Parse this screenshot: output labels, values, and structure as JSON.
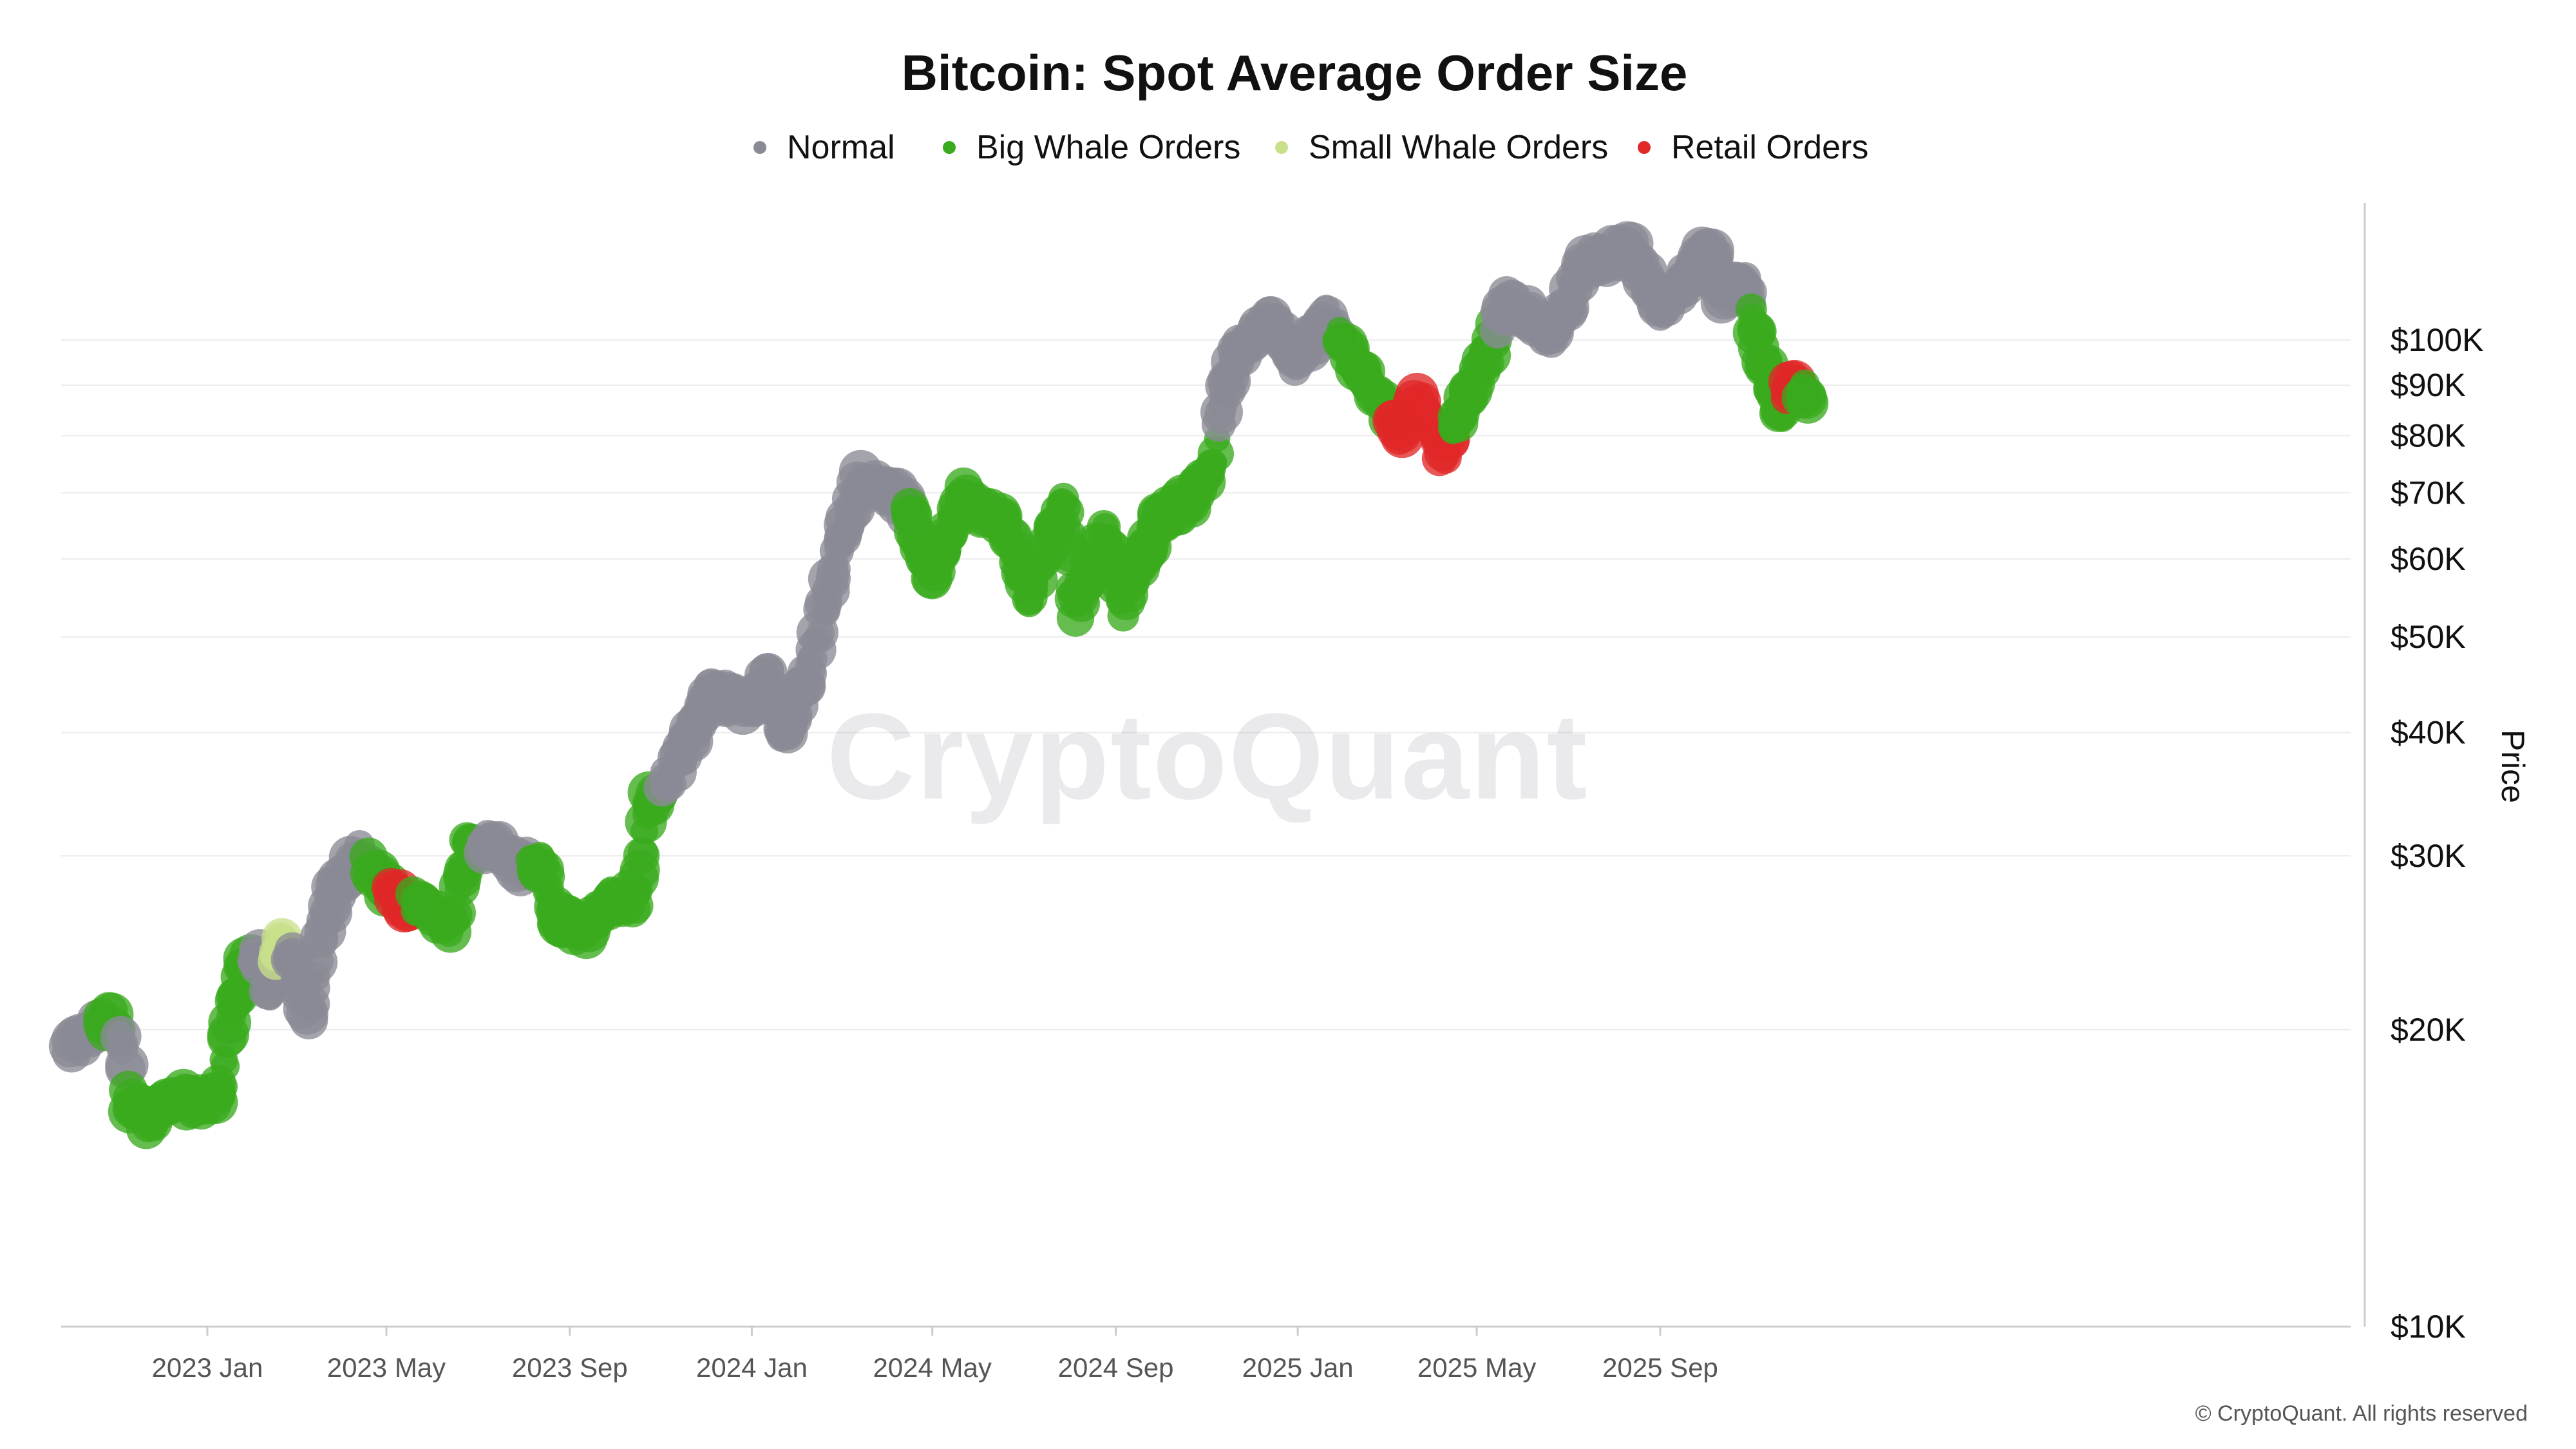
{
  "chart_data": {
    "type": "scatter",
    "title": "Bitcoin: Spot Average Order Size",
    "ylabel": "Price",
    "xlabel": "",
    "y_scale": "log",
    "ylim": [
      10000,
      150000
    ],
    "x_range": [
      "2022-10-01",
      "2025-12-10"
    ],
    "grid": true,
    "legend_position": "top-center",
    "watermark": "CryptoQuant",
    "copyright": "© CryptoQuant. All rights reserved",
    "y_ticks": [
      {
        "value": 100000,
        "label": "$100K"
      },
      {
        "value": 90000,
        "label": "$90K"
      },
      {
        "value": 80000,
        "label": "$80K"
      },
      {
        "value": 70000,
        "label": "$70K"
      },
      {
        "value": 60000,
        "label": "$60K"
      },
      {
        "value": 50000,
        "label": "$50K"
      },
      {
        "value": 40000,
        "label": "$40K"
      },
      {
        "value": 30000,
        "label": "$30K"
      },
      {
        "value": 20000,
        "label": "$20K"
      },
      {
        "value": 10000,
        "label": "$10K"
      }
    ],
    "x_ticks": [
      {
        "date": "2023-01-01",
        "label": "2023 Jan"
      },
      {
        "date": "2023-05-01",
        "label": "2023 May"
      },
      {
        "date": "2023-09-01",
        "label": "2023 Sep"
      },
      {
        "date": "2024-01-01",
        "label": "2024 Jan"
      },
      {
        "date": "2024-05-01",
        "label": "2024 May"
      },
      {
        "date": "2024-09-01",
        "label": "2024 Sep"
      },
      {
        "date": "2025-01-01",
        "label": "2025 Jan"
      },
      {
        "date": "2025-05-01",
        "label": "2025 May"
      },
      {
        "date": "2025-09-01",
        "label": "2025 Sep"
      }
    ],
    "series": [
      {
        "name": "Normal",
        "key": "normal",
        "color": "#8a8a96"
      },
      {
        "name": "Big Whale Orders",
        "key": "big",
        "color": "#3aaa1e"
      },
      {
        "name": "Small Whale Orders",
        "key": "small",
        "color": "#c8e08a"
      },
      {
        "name": "Retail Orders",
        "key": "retail",
        "color": "#e02828"
      }
    ],
    "price_path": [
      {
        "date": "2022-10-01",
        "price": 19200,
        "cat": "normal"
      },
      {
        "date": "2022-10-15",
        "price": 19800,
        "cat": "normal"
      },
      {
        "date": "2022-10-29",
        "price": 20700,
        "cat": "big"
      },
      {
        "date": "2022-11-08",
        "price": 18500,
        "cat": "normal"
      },
      {
        "date": "2022-11-10",
        "price": 16800,
        "cat": "big"
      },
      {
        "date": "2022-11-22",
        "price": 16200,
        "cat": "big"
      },
      {
        "date": "2022-12-10",
        "price": 17100,
        "cat": "big"
      },
      {
        "date": "2022-12-25",
        "price": 16800,
        "cat": "big"
      },
      {
        "date": "2023-01-10",
        "price": 17400,
        "cat": "big"
      },
      {
        "date": "2023-01-18",
        "price": 21000,
        "cat": "big"
      },
      {
        "date": "2023-01-25",
        "price": 23000,
        "cat": "big"
      },
      {
        "date": "2023-02-05",
        "price": 23500,
        "cat": "normal"
      },
      {
        "date": "2023-02-12",
        "price": 22000,
        "cat": "normal"
      },
      {
        "date": "2023-02-20",
        "price": 24500,
        "cat": "small"
      },
      {
        "date": "2023-02-28",
        "price": 23500,
        "cat": "normal"
      },
      {
        "date": "2023-03-10",
        "price": 20300,
        "cat": "normal"
      },
      {
        "date": "2023-03-18",
        "price": 25000,
        "cat": "normal"
      },
      {
        "date": "2023-03-28",
        "price": 27800,
        "cat": "normal"
      },
      {
        "date": "2023-04-12",
        "price": 30200,
        "cat": "normal"
      },
      {
        "date": "2023-04-25",
        "price": 28500,
        "cat": "big"
      },
      {
        "date": "2023-05-12",
        "price": 26800,
        "cat": "retail"
      },
      {
        "date": "2023-05-25",
        "price": 26800,
        "cat": "big"
      },
      {
        "date": "2023-06-14",
        "price": 25300,
        "cat": "big"
      },
      {
        "date": "2023-06-24",
        "price": 30400,
        "cat": "big"
      },
      {
        "date": "2023-07-12",
        "price": 30800,
        "cat": "normal"
      },
      {
        "date": "2023-07-28",
        "price": 29300,
        "cat": "normal"
      },
      {
        "date": "2023-08-14",
        "price": 29400,
        "cat": "big"
      },
      {
        "date": "2023-08-20",
        "price": 26100,
        "cat": "big"
      },
      {
        "date": "2023-09-11",
        "price": 25300,
        "cat": "big"
      },
      {
        "date": "2023-09-28",
        "price": 27000,
        "cat": "big"
      },
      {
        "date": "2023-10-15",
        "price": 27100,
        "cat": "big"
      },
      {
        "date": "2023-10-24",
        "price": 33900,
        "cat": "big"
      },
      {
        "date": "2023-11-10",
        "price": 36800,
        "cat": "normal"
      },
      {
        "date": "2023-12-05",
        "price": 44000,
        "cat": "normal"
      },
      {
        "date": "2024-01-01",
        "price": 42500,
        "cat": "normal"
      },
      {
        "date": "2024-01-12",
        "price": 46000,
        "cat": "normal"
      },
      {
        "date": "2024-01-23",
        "price": 39500,
        "cat": "normal"
      },
      {
        "date": "2024-02-10",
        "price": 47000,
        "cat": "normal"
      },
      {
        "date": "2024-02-28",
        "price": 61000,
        "cat": "normal"
      },
      {
        "date": "2024-03-14",
        "price": 72000,
        "cat": "normal"
      },
      {
        "date": "2024-04-10",
        "price": 69000,
        "cat": "normal"
      },
      {
        "date": "2024-04-20",
        "price": 64000,
        "cat": "big"
      },
      {
        "date": "2024-05-01",
        "price": 58000,
        "cat": "big"
      },
      {
        "date": "2024-05-22",
        "price": 69500,
        "cat": "big"
      },
      {
        "date": "2024-06-20",
        "price": 64500,
        "cat": "big"
      },
      {
        "date": "2024-07-05",
        "price": 55000,
        "cat": "big"
      },
      {
        "date": "2024-07-29",
        "price": 68500,
        "cat": "big"
      },
      {
        "date": "2024-08-05",
        "price": 53500,
        "cat": "big"
      },
      {
        "date": "2024-08-25",
        "price": 64000,
        "cat": "big"
      },
      {
        "date": "2024-09-06",
        "price": 53800,
        "cat": "big"
      },
      {
        "date": "2024-09-29",
        "price": 65500,
        "cat": "big"
      },
      {
        "date": "2024-10-20",
        "price": 68500,
        "cat": "big"
      },
      {
        "date": "2024-11-06",
        "price": 75000,
        "cat": "big"
      },
      {
        "date": "2024-11-12",
        "price": 88000,
        "cat": "normal"
      },
      {
        "date": "2024-11-22",
        "price": 98000,
        "cat": "normal"
      },
      {
        "date": "2024-12-17",
        "price": 106000,
        "cat": "normal"
      },
      {
        "date": "2024-12-30",
        "price": 93500,
        "cat": "normal"
      },
      {
        "date": "2025-01-20",
        "price": 106000,
        "cat": "normal"
      },
      {
        "date": "2025-02-05",
        "price": 97500,
        "cat": "big"
      },
      {
        "date": "2025-02-25",
        "price": 86000,
        "cat": "big"
      },
      {
        "date": "2025-03-10",
        "price": 80000,
        "cat": "retail"
      },
      {
        "date": "2025-03-25",
        "price": 87500,
        "cat": "retail"
      },
      {
        "date": "2025-04-08",
        "price": 76300,
        "cat": "retail"
      },
      {
        "date": "2025-04-22",
        "price": 87000,
        "cat": "big"
      },
      {
        "date": "2025-05-08",
        "price": 97000,
        "cat": "big"
      },
      {
        "date": "2025-05-22",
        "price": 110000,
        "cat": "normal"
      },
      {
        "date": "2025-06-22",
        "price": 101000,
        "cat": "normal"
      },
      {
        "date": "2025-07-14",
        "price": 120000,
        "cat": "normal"
      },
      {
        "date": "2025-08-14",
        "price": 123000,
        "cat": "normal"
      },
      {
        "date": "2025-09-01",
        "price": 108000,
        "cat": "normal"
      },
      {
        "date": "2025-10-06",
        "price": 124500,
        "cat": "normal"
      },
      {
        "date": "2025-10-11",
        "price": 111000,
        "cat": "normal"
      },
      {
        "date": "2025-10-28",
        "price": 113000,
        "cat": "normal"
      },
      {
        "date": "2025-11-04",
        "price": 101000,
        "cat": "big"
      },
      {
        "date": "2025-11-21",
        "price": 84000,
        "cat": "big"
      },
      {
        "date": "2025-11-28",
        "price": 91000,
        "cat": "retail"
      },
      {
        "date": "2025-12-10",
        "price": 88000,
        "cat": "big"
      }
    ]
  }
}
